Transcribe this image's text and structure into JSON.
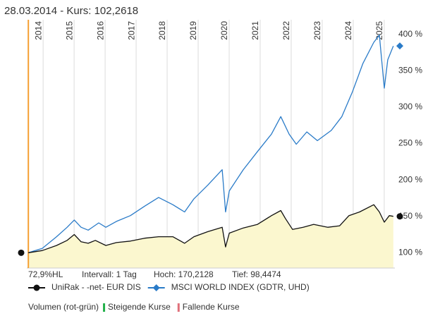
{
  "chart_data": {
    "type": "line",
    "title": "28.03.2014  -  Kurs: 102,2618",
    "xlim": [
      2013.61,
      2025.48
    ],
    "xticks": [
      2014,
      2015,
      2016,
      2017,
      2018,
      2019,
      2020,
      2021,
      2022,
      2023,
      2024,
      2025
    ],
    "ylim": [
      79,
      420
    ],
    "yticks": [
      {
        "value": 100,
        "label": "100 %"
      },
      {
        "value": 150,
        "label": "150 %"
      },
      {
        "value": 200,
        "label": "200 %"
      },
      {
        "value": 250,
        "label": "250 %"
      },
      {
        "value": 300,
        "label": "300 %"
      },
      {
        "value": 350,
        "label": "350 %"
      },
      {
        "value": 400,
        "label": "400 %"
      }
    ],
    "grid": true,
    "start_line_color": "#f5a033",
    "series": [
      {
        "name": "UniRak - -net- EUR DIS",
        "color": "#111111",
        "fill": "#fbf7cf",
        "marker": "circle",
        "x": [
          2013.66,
          2014.11,
          2014.57,
          2014.91,
          2015.14,
          2015.36,
          2015.59,
          2015.82,
          2016.16,
          2016.5,
          2016.95,
          2017.41,
          2017.86,
          2018.32,
          2018.7,
          2019.0,
          2019.45,
          2019.91,
          2020.02,
          2020.14,
          2020.59,
          2021.05,
          2021.5,
          2021.8,
          2021.95,
          2022.18,
          2022.52,
          2022.86,
          2023.32,
          2023.7,
          2024.0,
          2024.34,
          2024.8,
          2024.98,
          2025.14,
          2025.3,
          2025.43
        ],
        "values": [
          100,
          103,
          110,
          117,
          125,
          115,
          113,
          117,
          110,
          114,
          116,
          120,
          122,
          122,
          113,
          122,
          129,
          135,
          108,
          127,
          134,
          139,
          151,
          158,
          147,
          132,
          135,
          139,
          135,
          137,
          151,
          156,
          166,
          156,
          142,
          151,
          150
        ]
      },
      {
        "name": "MSCI WORLD INDEX (GDTR, UHD)",
        "color": "#2a7bc8",
        "marker": "diamond",
        "x": [
          2013.66,
          2014.11,
          2014.57,
          2014.91,
          2015.14,
          2015.36,
          2015.59,
          2015.93,
          2016.16,
          2016.5,
          2016.95,
          2017.41,
          2017.86,
          2018.32,
          2018.7,
          2019.0,
          2019.45,
          2019.91,
          2020.02,
          2020.14,
          2020.59,
          2021.05,
          2021.5,
          2021.8,
          2022.07,
          2022.3,
          2022.64,
          2022.98,
          2023.43,
          2023.77,
          2024.11,
          2024.45,
          2024.8,
          2024.98,
          2025.14,
          2025.25,
          2025.43
        ],
        "values": [
          100,
          106,
          122,
          135,
          145,
          135,
          131,
          141,
          135,
          143,
          151,
          164,
          176,
          166,
          156,
          174,
          193,
          214,
          156,
          185,
          214,
          239,
          263,
          287,
          263,
          249,
          266,
          254,
          268,
          287,
          321,
          360,
          389,
          399,
          326,
          365,
          384
        ]
      }
    ],
    "info": [
      "72,9%HL",
      "Intervall: 1 Tag",
      "Hoch: 170,2128",
      "Tief: 98,4474"
    ],
    "volume": {
      "label": "Volumen (rot-grün)",
      "items": [
        {
          "label": "Steigende Kurse",
          "color": "#22b04a"
        },
        {
          "label": "Fallende Kurse",
          "color": "#e0707a"
        }
      ]
    }
  }
}
